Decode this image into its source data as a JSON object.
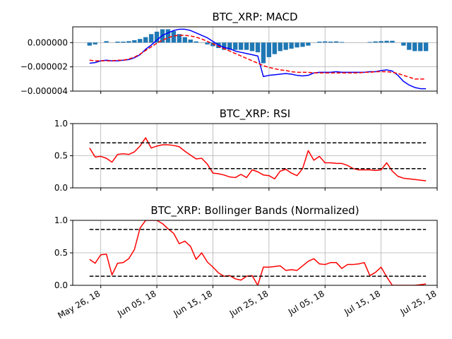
{
  "chart_data": [
    {
      "type": "bar+line",
      "title": "BTC_XRP: MACD",
      "ylim": [
        -4e-06,
        1.3e-06
      ],
      "yticks": [
        0.0,
        -2e-06,
        -4e-06
      ],
      "ytick_labels": [
        "0.000000",
        "−0.000002",
        "−0.000004"
      ],
      "grid": true,
      "x_dates": [
        "2018-05-24",
        "2018-05-25",
        "2018-05-26",
        "2018-05-27",
        "2018-05-28",
        "2018-05-29",
        "2018-05-30",
        "2018-05-31",
        "2018-06-01",
        "2018-06-02",
        "2018-06-03",
        "2018-06-04",
        "2018-06-05",
        "2018-06-06",
        "2018-06-07",
        "2018-06-08",
        "2018-06-09",
        "2018-06-10",
        "2018-06-11",
        "2018-06-12",
        "2018-06-13",
        "2018-06-14",
        "2018-06-15",
        "2018-06-16",
        "2018-06-17",
        "2018-06-18",
        "2018-06-19",
        "2018-06-20",
        "2018-06-21",
        "2018-06-22",
        "2018-06-23",
        "2018-06-24",
        "2018-06-25",
        "2018-06-26",
        "2018-06-27",
        "2018-06-28",
        "2018-06-29",
        "2018-06-30",
        "2018-07-01",
        "2018-07-02",
        "2018-07-03",
        "2018-07-04",
        "2018-07-05",
        "2018-07-06",
        "2018-07-07",
        "2018-07-08",
        "2018-07-09",
        "2018-07-10",
        "2018-07-11",
        "2018-07-12",
        "2018-07-13",
        "2018-07-14",
        "2018-07-15",
        "2018-07-16",
        "2018-07-17",
        "2018-07-18",
        "2018-07-19",
        "2018-07-20",
        "2018-07-21",
        "2018-07-22",
        "2018-07-23"
      ],
      "series": [
        {
          "kind": "bar",
          "color": "#1f77b4",
          "values": [
            -2.5e-07,
            -1.5e-07,
            0,
            1.2e-07,
            0,
            8e-08,
            8e-08,
            1.2e-07,
            2e-07,
            3e-07,
            4.5e-07,
            7e-07,
            9e-07,
            1.1e-06,
            1.1e-06,
            9.5e-07,
            7e-07,
            4.5e-07,
            2.5e-07,
            1e-07,
            -1e-08,
            -1.5e-07,
            -3e-07,
            -4.5e-07,
            -6e-07,
            -6e-07,
            -6e-07,
            -6e-07,
            -6e-07,
            -7e-07,
            -8e-07,
            -1.7e-06,
            -1.2e-06,
            -9.5e-07,
            -7e-07,
            -6e-07,
            -5e-07,
            -4e-07,
            -3.5e-07,
            -2.5e-07,
            -1e-08,
            8e-08,
            1e-07,
            8e-08,
            1e-07,
            5e-08,
            0,
            0,
            0,
            0,
            5e-08,
            1e-07,
            1.2e-07,
            1.5e-07,
            1.5e-07,
            0,
            -2.5e-07,
            -6e-07,
            -7e-07,
            -7e-07,
            -7e-07
          ]
        },
        {
          "kind": "line",
          "color": "#0000ff",
          "style": "solid",
          "values": [
            -1.7e-06,
            -1.65e-06,
            -1.5e-06,
            -1.45e-06,
            -1.5e-06,
            -1.5e-06,
            -1.45e-06,
            -1.4e-06,
            -1.25e-06,
            -1e-06,
            -5.5e-07,
            -2e-07,
            2e-07,
            6e-07,
            8e-07,
            1e-06,
            1.1e-06,
            1.1e-06,
            1e-06,
            8e-07,
            6e-07,
            4e-07,
            1e-07,
            -2e-07,
            -4e-07,
            -5e-07,
            -7e-07,
            -8e-07,
            -9e-07,
            -1e-06,
            -1.1e-06,
            -2.8e-06,
            -2.7e-06,
            -2.65e-06,
            -2.6e-06,
            -2.55e-06,
            -2.6e-06,
            -2.7e-06,
            -2.75e-06,
            -2.7e-06,
            -2.5e-06,
            -2.45e-06,
            -2.45e-06,
            -2.45e-06,
            -2.4e-06,
            -2.45e-06,
            -2.45e-06,
            -2.45e-06,
            -2.45e-06,
            -2.45e-06,
            -2.4e-06,
            -2.4e-06,
            -2.3e-06,
            -2.25e-06,
            -2.35e-06,
            -2.7e-06,
            -3.2e-06,
            -3.5e-06,
            -3.7e-06,
            -3.8e-06,
            -3.8e-06
          ]
        },
        {
          "kind": "line",
          "color": "#ff0000",
          "style": "dashed",
          "values": [
            -1.45e-06,
            -1.5e-06,
            -1.5e-06,
            -1.5e-06,
            -1.5e-06,
            -1.45e-06,
            -1.45e-06,
            -1.35e-06,
            -1.2e-06,
            -9.5e-07,
            -6.5e-07,
            -3.5e-07,
            -5e-08,
            2e-07,
            4e-07,
            5.5e-07,
            6e-07,
            6e-07,
            5.5e-07,
            4.5e-07,
            3e-07,
            1e-07,
            -1e-07,
            -3e-07,
            -5e-07,
            -7e-07,
            -9e-07,
            -1.1e-06,
            -1.3e-06,
            -1.5e-06,
            -1.7e-06,
            -1.9e-06,
            -2.05e-06,
            -2.15e-06,
            -2.25e-06,
            -2.3e-06,
            -2.4e-06,
            -2.45e-06,
            -2.45e-06,
            -2.45e-06,
            -2.5e-06,
            -2.5e-06,
            -2.5e-06,
            -2.5e-06,
            -2.5e-06,
            -2.5e-06,
            -2.5e-06,
            -2.5e-06,
            -2.5e-06,
            -2.45e-06,
            -2.45e-06,
            -2.4e-06,
            -2.4e-06,
            -2.4e-06,
            -2.45e-06,
            -2.55e-06,
            -2.7e-06,
            -2.85e-06,
            -3e-06,
            -3e-06,
            -3e-06
          ]
        }
      ]
    },
    {
      "type": "line",
      "title": "BTC_XRP: RSI",
      "ylim": [
        0,
        1
      ],
      "yticks": [
        0.0,
        0.5,
        1.0
      ],
      "ytick_labels": [
        "0.0",
        "0.5",
        "1.0"
      ],
      "grid": true,
      "thresholds": [
        0.7,
        0.3
      ],
      "series": [
        {
          "kind": "line",
          "color": "#ff0000",
          "x_start": "2018-05-24",
          "values": [
            0.62,
            0.48,
            0.49,
            0.46,
            0.4,
            0.52,
            0.53,
            0.52,
            0.56,
            0.65,
            0.78,
            0.62,
            0.65,
            0.67,
            0.67,
            0.66,
            0.64,
            0.57,
            0.51,
            0.45,
            0.46,
            0.37,
            0.23,
            0.22,
            0.2,
            0.17,
            0.16,
            0.21,
            0.16,
            0.28,
            0.25,
            0.2,
            0.19,
            0.14,
            0.26,
            0.29,
            0.23,
            0.19,
            0.3,
            0.58,
            0.43,
            0.49,
            0.39,
            0.39,
            0.38,
            0.38,
            0.35,
            0.3,
            0.28,
            0.28,
            0.28,
            0.27,
            0.28,
            0.39,
            0.26,
            0.18,
            0.15,
            0.14,
            0.13,
            0.12,
            0.11
          ]
        }
      ]
    },
    {
      "type": "line",
      "title": "BTC_XRP: Bollinger Bands (Normalized)",
      "ylim": [
        0,
        1
      ],
      "yticks": [
        0.0,
        0.5,
        1.0
      ],
      "ytick_labels": [
        "0.0",
        "0.5",
        "1.0"
      ],
      "grid": true,
      "thresholds": [
        0.86,
        0.14
      ],
      "series": [
        {
          "kind": "line",
          "color": "#ff0000",
          "x_start": "2018-05-24",
          "values": [
            0.4,
            0.34,
            0.47,
            0.48,
            0.16,
            0.34,
            0.35,
            0.41,
            0.55,
            0.88,
            1.0,
            1.0,
            1.0,
            0.95,
            0.87,
            0.8,
            0.64,
            0.68,
            0.6,
            0.4,
            0.5,
            0.36,
            0.28,
            0.19,
            0.14,
            0.15,
            0.1,
            0.08,
            0.14,
            0.15,
            0.0,
            0.28,
            0.28,
            0.29,
            0.3,
            0.23,
            0.24,
            0.23,
            0.3,
            0.37,
            0.41,
            0.33,
            0.32,
            0.35,
            0.35,
            0.26,
            0.32,
            0.32,
            0.33,
            0.35,
            0.15,
            0.2,
            0.28,
            0.13,
            0.0,
            0.0,
            0.0,
            0.0,
            0.0,
            0.01,
            0.02
          ]
        }
      ]
    }
  ],
  "x_axis": {
    "tick_dates": [
      "2018-05-26",
      "2018-06-05",
      "2018-06-15",
      "2018-06-25",
      "2018-07-05",
      "2018-07-15",
      "2018-07-25"
    ],
    "tick_labels": [
      "May 26, 18",
      "Jun 05, 18",
      "Jun 15, 18",
      "Jun 25, 18",
      "Jul 05, 18",
      "Jul 15, 18",
      "Jul 25, 18"
    ],
    "xlim": [
      "2018-05-21",
      "2018-07-25"
    ]
  }
}
